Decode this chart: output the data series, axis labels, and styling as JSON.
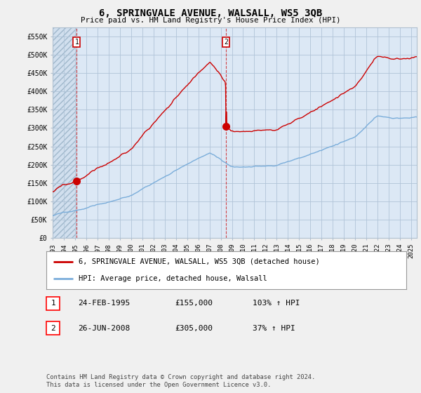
{
  "title": "6, SPRINGVALE AVENUE, WALSALL, WS5 3QB",
  "subtitle": "Price paid vs. HM Land Registry's House Price Index (HPI)",
  "ylabel_ticks": [
    "£0",
    "£50K",
    "£100K",
    "£150K",
    "£200K",
    "£250K",
    "£300K",
    "£350K",
    "£400K",
    "£450K",
    "£500K",
    "£550K"
  ],
  "ytick_vals": [
    0,
    50000,
    100000,
    150000,
    200000,
    250000,
    300000,
    350000,
    400000,
    450000,
    500000,
    550000
  ],
  "ylim": [
    0,
    575000
  ],
  "xlim_start": 1993.0,
  "xlim_end": 2025.5,
  "xticks": [
    1993,
    1994,
    1995,
    1996,
    1997,
    1998,
    1999,
    2000,
    2001,
    2002,
    2003,
    2004,
    2005,
    2006,
    2007,
    2008,
    2009,
    2010,
    2011,
    2012,
    2013,
    2014,
    2015,
    2016,
    2017,
    2018,
    2019,
    2020,
    2021,
    2022,
    2023,
    2024,
    2025
  ],
  "sale1_x": 1995.15,
  "sale1_y": 155000,
  "sale2_x": 2008.48,
  "sale2_y": 305000,
  "line_color_property": "#cc0000",
  "line_color_hpi": "#7aadda",
  "plot_bg_color": "#dce8f5",
  "hatch_bg_color": "#c8d8e8",
  "legend_property": "6, SPRINGVALE AVENUE, WALSALL, WS5 3QB (detached house)",
  "legend_hpi": "HPI: Average price, detached house, Walsall",
  "note1_date": "24-FEB-1995",
  "note1_price": "£155,000",
  "note1_hpi": "103% ↑ HPI",
  "note2_date": "26-JUN-2008",
  "note2_price": "£305,000",
  "note2_hpi": "37% ↑ HPI",
  "footer": "Contains HM Land Registry data © Crown copyright and database right 2024.\nThis data is licensed under the Open Government Licence v3.0.",
  "bg_color": "#f0f0f0",
  "grid_color": "#b0c4d8",
  "spine_color": "#b0c0d0"
}
